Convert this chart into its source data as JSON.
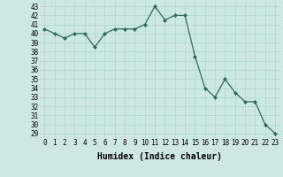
{
  "x": [
    0,
    1,
    2,
    3,
    4,
    5,
    6,
    7,
    8,
    9,
    10,
    11,
    12,
    13,
    14,
    15,
    16,
    17,
    18,
    19,
    20,
    21,
    22,
    23
  ],
  "y": [
    40.5,
    40.0,
    39.5,
    40.0,
    40.0,
    38.5,
    40.0,
    40.5,
    40.5,
    40.5,
    41.0,
    43.0,
    41.5,
    42.0,
    42.0,
    37.5,
    34.0,
    33.0,
    35.0,
    33.5,
    32.5,
    32.5,
    30.0,
    29.0
  ],
  "xlabel": "Humidex (Indice chaleur)",
  "ylim": [
    28.5,
    43.5
  ],
  "xlim": [
    -0.5,
    23.5
  ],
  "yticks": [
    29,
    30,
    31,
    32,
    33,
    34,
    35,
    36,
    37,
    38,
    39,
    40,
    41,
    42,
    43
  ],
  "xticks": [
    0,
    1,
    2,
    3,
    4,
    5,
    6,
    7,
    8,
    9,
    10,
    11,
    12,
    13,
    14,
    15,
    16,
    17,
    18,
    19,
    20,
    21,
    22,
    23
  ],
  "line_color": "#2d6b5e",
  "marker": "D",
  "marker_size": 2.0,
  "bg_color": "#cde8e4",
  "grid_color": "#afd4ce",
  "axis_fontsize": 7.0,
  "tick_fontsize": 5.5,
  "lw": 0.9
}
